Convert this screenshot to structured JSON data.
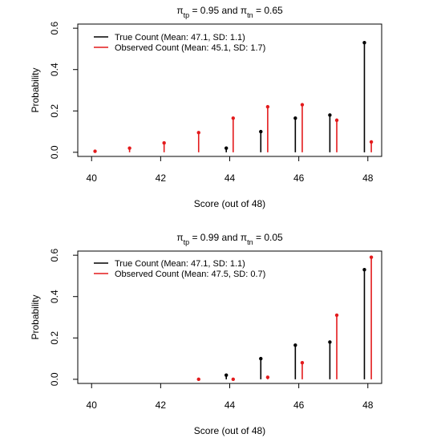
{
  "chart_data": [
    {
      "type": "lollipop",
      "title": {
        "pre": "π",
        "sub1": "tp",
        "mid": " = 0.95 and π",
        "sub2": "tn",
        "post": " = 0.65"
      },
      "xlabel": "Score (out of 48)",
      "ylabel": "Probability",
      "xlim": [
        39.6,
        48.4
      ],
      "ylim": [
        -0.02,
        0.62
      ],
      "xticks": [
        40,
        42,
        44,
        46,
        48
      ],
      "yticks": [
        0.0,
        0.2,
        0.4,
        0.6
      ],
      "ytick_labels": [
        "0.0",
        "0.2",
        "0.4",
        "0.6"
      ],
      "legend_position": "top-left",
      "series": [
        {
          "name": "True Count (Mean: 47.1, SD: 1.1)",
          "color": "#000000",
          "x": [
            44,
            45,
            46,
            47,
            48
          ],
          "values": [
            0.02,
            0.1,
            0.165,
            0.18,
            0.53
          ]
        },
        {
          "name": "Observed Count (Mean: 45.1, SD: 1.7)",
          "color": "#e31a1c",
          "x": [
            40,
            41,
            42,
            43,
            44,
            45,
            46,
            47,
            48
          ],
          "values": [
            0.005,
            0.02,
            0.045,
            0.095,
            0.165,
            0.22,
            0.23,
            0.155,
            0.05
          ]
        }
      ]
    },
    {
      "type": "lollipop",
      "title": {
        "pre": "π",
        "sub1": "tp",
        "mid": " = 0.99 and π",
        "sub2": "tn",
        "post": " = 0.05"
      },
      "xlabel": "Score (out of 48)",
      "ylabel": "Probability",
      "xlim": [
        39.6,
        48.4
      ],
      "ylim": [
        -0.02,
        0.62
      ],
      "xticks": [
        40,
        42,
        44,
        46,
        48
      ],
      "yticks": [
        0.0,
        0.2,
        0.4,
        0.6
      ],
      "ytick_labels": [
        "0.0",
        "0.2",
        "0.4",
        "0.6"
      ],
      "legend_position": "top-left",
      "series": [
        {
          "name": "True Count (Mean: 47.1, SD: 1.1)",
          "color": "#000000",
          "x": [
            44,
            45,
            46,
            47,
            48
          ],
          "values": [
            0.02,
            0.1,
            0.165,
            0.18,
            0.53
          ]
        },
        {
          "name": "Observed Count (Mean: 47.5, SD: 0.7)",
          "color": "#e31a1c",
          "x": [
            43,
            44,
            45,
            46,
            47,
            48
          ],
          "values": [
            0.0,
            0.0,
            0.01,
            0.08,
            0.31,
            0.59
          ]
        }
      ]
    }
  ]
}
